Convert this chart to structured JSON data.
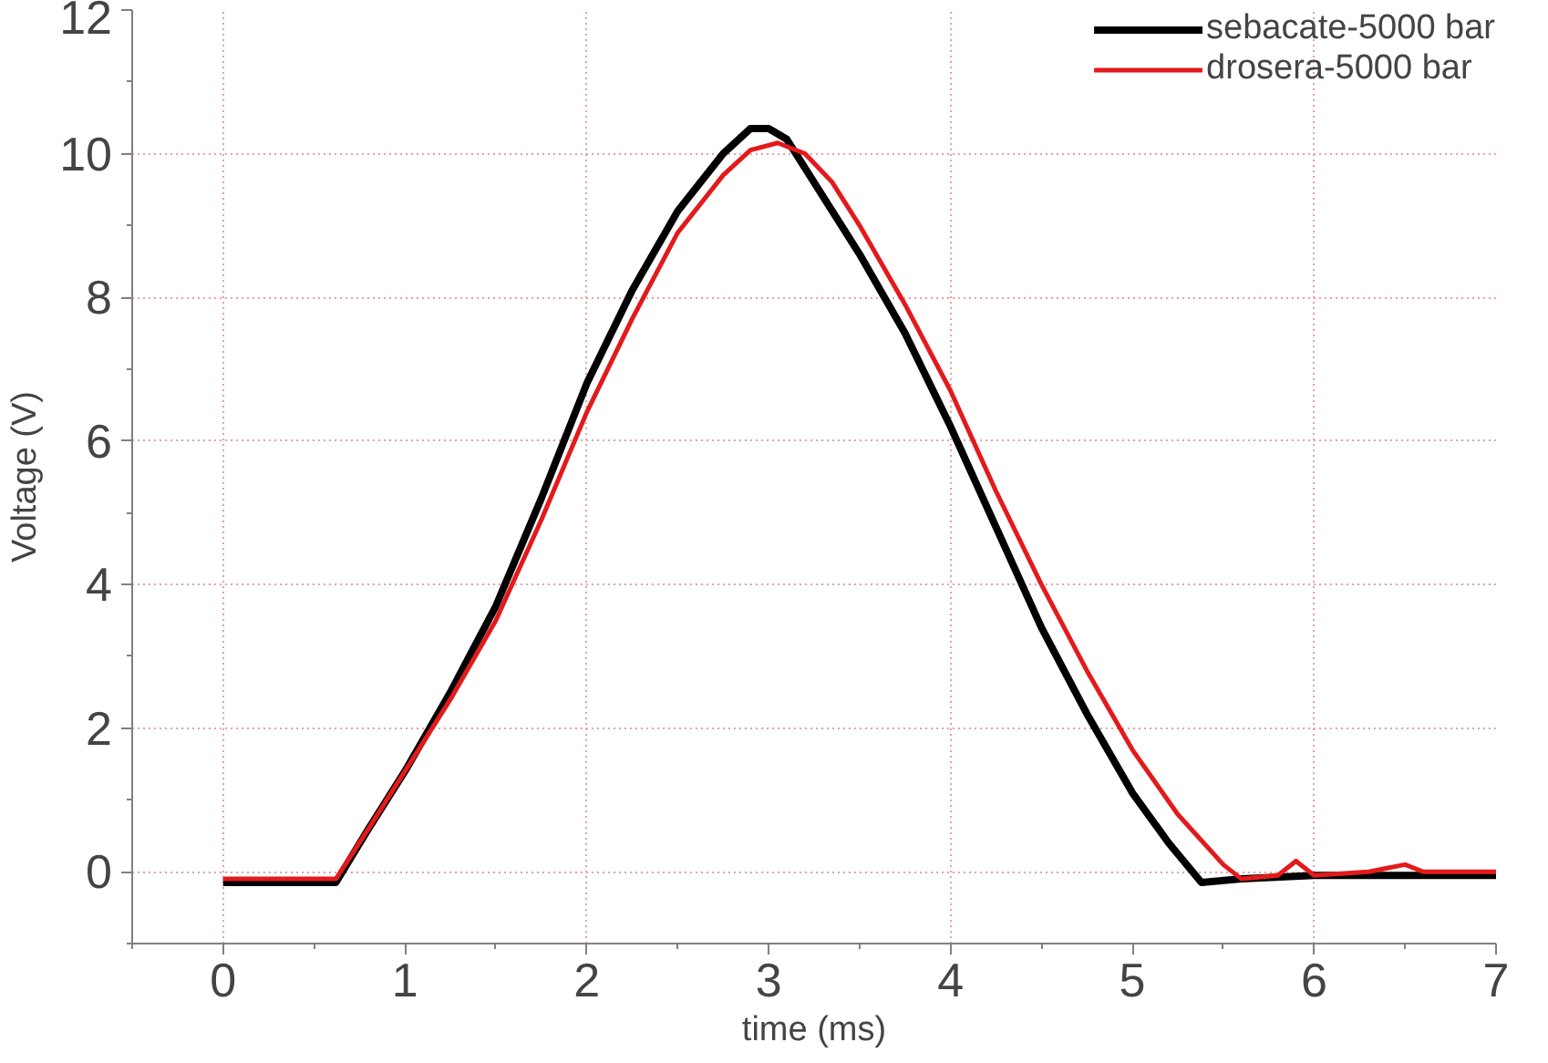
{
  "chart_data": {
    "type": "line",
    "xlabel": "time (ms)",
    "ylabel": "Voltage (V)",
    "xlim": [
      -0.5,
      7
    ],
    "ylim": [
      -1,
      12
    ],
    "xticks": [
      0,
      1,
      2,
      3,
      4,
      5,
      6,
      7
    ],
    "yticks": [
      0,
      2,
      4,
      6,
      8,
      10,
      12
    ],
    "grid": true,
    "legend": "top right",
    "marker": "none",
    "line_style": "solid",
    "series": [
      {
        "name": "sebacate-5000 bar",
        "color": "#000000",
        "x": [
          0,
          0.3,
          0.62,
          0.8,
          1.0,
          1.25,
          1.5,
          1.75,
          2.0,
          2.25,
          2.5,
          2.75,
          2.9,
          3.0,
          3.1,
          3.25,
          3.5,
          3.75,
          4.0,
          4.25,
          4.5,
          4.75,
          5.0,
          5.2,
          5.38,
          5.6,
          6.0,
          6.5,
          7.0
        ],
        "values": [
          -0.15,
          -0.15,
          -0.15,
          0.6,
          1.4,
          2.5,
          3.7,
          5.2,
          6.8,
          8.1,
          9.2,
          10.0,
          10.35,
          10.35,
          10.2,
          9.6,
          8.6,
          7.5,
          6.2,
          4.8,
          3.4,
          2.2,
          1.1,
          0.4,
          -0.15,
          -0.1,
          -0.05,
          -0.05,
          -0.05
        ]
      },
      {
        "name": "drosera-5000 bar",
        "color": "#e31a1c",
        "x": [
          0,
          0.3,
          0.62,
          0.8,
          1.0,
          1.25,
          1.5,
          1.75,
          2.0,
          2.25,
          2.5,
          2.75,
          2.9,
          3.05,
          3.2,
          3.35,
          3.5,
          3.75,
          4.0,
          4.25,
          4.5,
          4.75,
          5.0,
          5.25,
          5.5,
          5.6,
          5.8,
          5.9,
          6.0,
          6.3,
          6.5,
          6.6,
          7.0
        ],
        "values": [
          -0.1,
          -0.1,
          -0.1,
          0.6,
          1.4,
          2.4,
          3.5,
          4.9,
          6.4,
          7.7,
          8.9,
          9.7,
          10.05,
          10.15,
          10.0,
          9.6,
          9.0,
          7.9,
          6.7,
          5.3,
          4.0,
          2.8,
          1.7,
          0.8,
          0.1,
          -0.1,
          -0.05,
          0.15,
          -0.05,
          0.0,
          0.1,
          0.0,
          0.0
        ]
      }
    ]
  }
}
